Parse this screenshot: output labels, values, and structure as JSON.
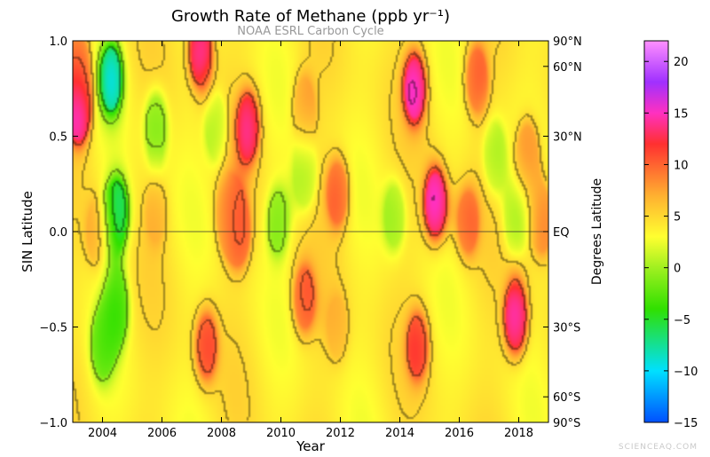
{
  "chart_data": {
    "type": "heatmap",
    "title": "Growth Rate of Methane (ppb yr⁻¹)",
    "subtitle": "NOAA ESRL Carbon Cycle",
    "xlabel": "Year",
    "ylabel": "SIN Latitude",
    "y2label": "Degrees Latitude",
    "xlim": [
      2003.0,
      2019.0
    ],
    "ylim": [
      -1.0,
      1.0
    ],
    "x_ticks": [
      2004,
      2006,
      2008,
      2010,
      2012,
      2014,
      2016,
      2018
    ],
    "y_ticks": [
      -1.0,
      -0.5,
      0.0,
      0.5,
      1.0
    ],
    "y_tick_labels": [
      "−1.0",
      "−0.5",
      "0.0",
      "0.5",
      "1.0"
    ],
    "y2_ticks": [
      {
        "sin": 1.0,
        "label": "90°N"
      },
      {
        "sin": 0.866,
        "label": "60°N"
      },
      {
        "sin": 0.5,
        "label": "30°N"
      },
      {
        "sin": 0.0,
        "label": "EQ"
      },
      {
        "sin": -0.5,
        "label": "30°S"
      },
      {
        "sin": -0.866,
        "label": "60°S"
      },
      {
        "sin": -1.0,
        "label": "90°S"
      }
    ],
    "colorbar": {
      "min": -15,
      "max": 22,
      "ticks": [
        -15,
        -10,
        -5,
        0,
        5,
        10,
        15,
        20
      ],
      "tick_labels": [
        "−15",
        "−10",
        "−5",
        "0",
        "5",
        "10",
        "15",
        "20"
      ],
      "colors": [
        "#0050ff",
        "#00e0ff",
        "#30e000",
        "#a0f020",
        "#ffff30",
        "#ffb030",
        "#ff3030",
        "#ff30c0",
        "#a030ff",
        "#ff90ff"
      ],
      "stops": [
        -15,
        -10,
        -4,
        0,
        3,
        7,
        12,
        15,
        18,
        22
      ]
    },
    "features": [
      {
        "year": 2003.2,
        "sin": 0.65,
        "value": 19
      },
      {
        "year": 2003.2,
        "sin": 0.85,
        "value": 10
      },
      {
        "year": 2004.3,
        "sin": 0.8,
        "value": -12
      },
      {
        "year": 2004.5,
        "sin": 0.1,
        "value": -10
      },
      {
        "year": 2004.5,
        "sin": -0.4,
        "value": -5
      },
      {
        "year": 2004.0,
        "sin": -0.6,
        "value": -3
      },
      {
        "year": 2003.8,
        "sin": 0.0,
        "value": 8
      },
      {
        "year": 2005.8,
        "sin": 0.55,
        "value": -3
      },
      {
        "year": 2005.8,
        "sin": 0.1,
        "value": 7
      },
      {
        "year": 2007.3,
        "sin": 0.95,
        "value": 18
      },
      {
        "year": 2007.5,
        "sin": -0.6,
        "value": 13
      },
      {
        "year": 2007.8,
        "sin": 0.55,
        "value": -1
      },
      {
        "year": 2008.2,
        "sin": 0.1,
        "value": 9
      },
      {
        "year": 2008.6,
        "sin": 0.0,
        "value": 12
      },
      {
        "year": 2008.9,
        "sin": 0.55,
        "value": 16
      },
      {
        "year": 2009.9,
        "sin": 0.05,
        "value": -2
      },
      {
        "year": 2010.8,
        "sin": 0.3,
        "value": -1
      },
      {
        "year": 2010.8,
        "sin": -0.35,
        "value": 12
      },
      {
        "year": 2010.8,
        "sin": 0.65,
        "value": 9
      },
      {
        "year": 2011.9,
        "sin": 0.2,
        "value": 12
      },
      {
        "year": 2011.9,
        "sin": -0.5,
        "value": 7
      },
      {
        "year": 2013.8,
        "sin": 0.08,
        "value": -1
      },
      {
        "year": 2014.5,
        "sin": 0.75,
        "value": 18
      },
      {
        "year": 2014.6,
        "sin": -0.6,
        "value": 13
      },
      {
        "year": 2015.2,
        "sin": 0.15,
        "value": 19
      },
      {
        "year": 2016.6,
        "sin": 0.8,
        "value": 12
      },
      {
        "year": 2016.3,
        "sin": 0.05,
        "value": 11
      },
      {
        "year": 2017.2,
        "sin": 0.4,
        "value": -1
      },
      {
        "year": 2017.9,
        "sin": -0.45,
        "value": 18
      },
      {
        "year": 2017.9,
        "sin": 0.05,
        "value": -1
      },
      {
        "year": 2018.3,
        "sin": 0.4,
        "value": 11
      },
      {
        "year": 2018.8,
        "sin": 0.05,
        "value": 11
      }
    ]
  },
  "watermark": "SCIENCEAQ.COM"
}
